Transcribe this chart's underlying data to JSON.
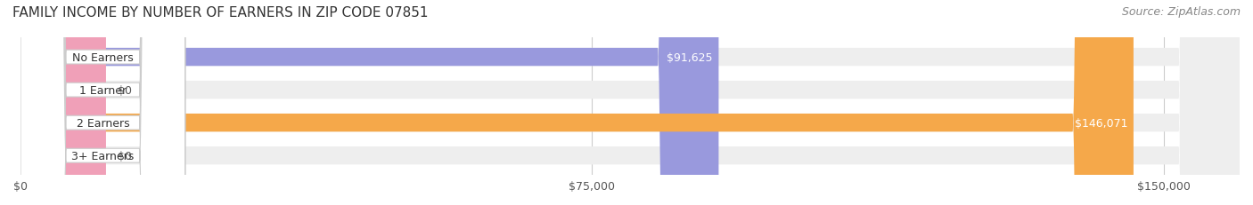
{
  "title": "FAMILY INCOME BY NUMBER OF EARNERS IN ZIP CODE 07851",
  "source": "Source: ZipAtlas.com",
  "categories": [
    "No Earners",
    "1 Earner",
    "2 Earners",
    "3+ Earners"
  ],
  "values": [
    91625,
    0,
    146071,
    0
  ],
  "bar_colors": [
    "#9999dd",
    "#f0a0b8",
    "#f5a84a",
    "#f0a0b8"
  ],
  "bar_bg_color": "#eeeeee",
  "label_bg_color": "#ffffff",
  "value_labels": [
    "$91,625",
    "$0",
    "$146,071",
    "$0"
  ],
  "xlim": [
    0,
    160000
  ],
  "xticks": [
    0,
    75000,
    150000
  ],
  "xtick_labels": [
    "$0",
    "$75,000",
    "$150,000"
  ],
  "title_fontsize": 11,
  "source_fontsize": 9,
  "tick_fontsize": 9,
  "bar_label_fontsize": 9,
  "value_label_fontsize": 9,
  "fig_width": 14.06,
  "fig_height": 2.32,
  "background_color": "#ffffff"
}
